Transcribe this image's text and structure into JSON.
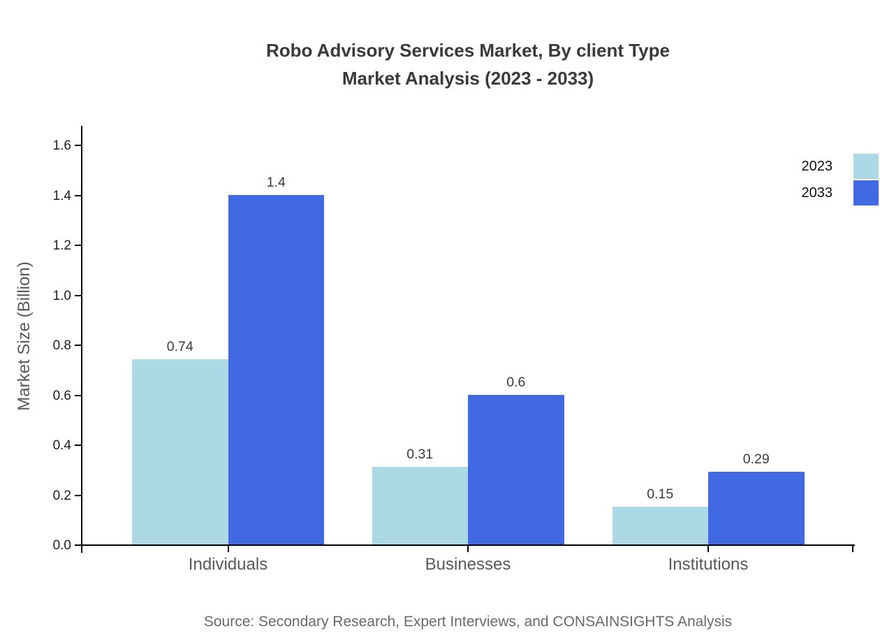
{
  "chart": {
    "title_line1": "Robo Advisory Services Market, By client Type",
    "title_line2": "Market Analysis (2023 - 2033)",
    "ylabel": "Market Size (Billion)",
    "source": "Source: Secondary Research, Expert Interviews, and CONSAINSIGHTS Analysis"
  },
  "chart_data": {
    "type": "bar",
    "title": "Robo Advisory Services Market, By client Type Market Analysis (2023 - 2033)",
    "categories": [
      "Individuals",
      "Businesses",
      "Institutions"
    ],
    "series": [
      {
        "name": "2023",
        "color": "#ADD8E6",
        "values": [
          0.74,
          0.31,
          0.15
        ]
      },
      {
        "name": "2033",
        "color": "#4169E1",
        "values": [
          1.4,
          0.6,
          0.29
        ]
      }
    ],
    "xlabel": "",
    "ylabel": "Market Size (Billion)",
    "ylim": [
      0,
      1.68
    ],
    "yticks": [
      "0.0",
      "0.2",
      "0.4",
      "0.6",
      "0.8",
      "1.0",
      "1.2",
      "1.4",
      "1.6"
    ],
    "grid": false,
    "legend_position": "upper right",
    "value_labels_shown": true,
    "colors": {
      "axis": "#000000",
      "title_text": "#3a3a3a",
      "tick_text": "#1f1f1f",
      "category_text": "#595959",
      "source_text": "#696969"
    }
  }
}
